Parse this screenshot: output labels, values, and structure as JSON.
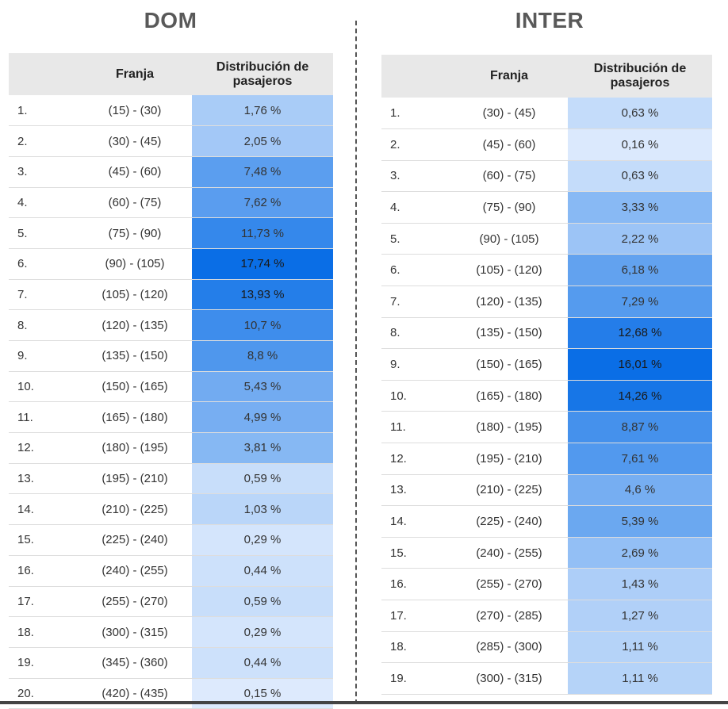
{
  "colors": {
    "scale_low": "#f2f7ff",
    "scale_high": "#0a6ee6"
  },
  "dom": {
    "title": "DOM",
    "headers": {
      "index": "",
      "range": "Franja",
      "value": "Distribución de pasajeros"
    },
    "max_share": 17.74,
    "rows": [
      {
        "index": "1.",
        "range": "(15) - (30)",
        "value": "1,76 %",
        "share": 1.76
      },
      {
        "index": "2.",
        "range": "(30) - (45)",
        "value": "2,05 %",
        "share": 2.05
      },
      {
        "index": "3.",
        "range": "(45) - (60)",
        "value": "7,48 %",
        "share": 7.48
      },
      {
        "index": "4.",
        "range": "(60) - (75)",
        "value": "7,62 %",
        "share": 7.62
      },
      {
        "index": "5.",
        "range": "(75) - (90)",
        "value": "11,73 %",
        "share": 11.73
      },
      {
        "index": "6.",
        "range": "(90) - (105)",
        "value": "17,74 %",
        "share": 17.74
      },
      {
        "index": "7.",
        "range": "(105) - (120)",
        "value": "13,93 %",
        "share": 13.93
      },
      {
        "index": "8.",
        "range": "(120) - (135)",
        "value": "10,7 %",
        "share": 10.7
      },
      {
        "index": "9.",
        "range": "(135) - (150)",
        "value": "8,8 %",
        "share": 8.8
      },
      {
        "index": "10.",
        "range": "(150) - (165)",
        "value": "5,43 %",
        "share": 5.43
      },
      {
        "index": "11.",
        "range": "(165) - (180)",
        "value": "4,99 %",
        "share": 4.99
      },
      {
        "index": "12.",
        "range": "(180) - (195)",
        "value": "3,81 %",
        "share": 3.81
      },
      {
        "index": "13.",
        "range": "(195) - (210)",
        "value": "0,59 %",
        "share": 0.59
      },
      {
        "index": "14.",
        "range": "(210) - (225)",
        "value": "1,03 %",
        "share": 1.03
      },
      {
        "index": "15.",
        "range": "(225) - (240)",
        "value": "0,29 %",
        "share": 0.29
      },
      {
        "index": "16.",
        "range": "(240) - (255)",
        "value": "0,44 %",
        "share": 0.44
      },
      {
        "index": "17.",
        "range": "(255) - (270)",
        "value": "0,59 %",
        "share": 0.59
      },
      {
        "index": "18.",
        "range": "(300) - (315)",
        "value": "0,29 %",
        "share": 0.29
      },
      {
        "index": "19.",
        "range": "(345) - (360)",
        "value": "0,44 %",
        "share": 0.44
      },
      {
        "index": "20.",
        "range": "(420) - (435)",
        "value": "0,15 %",
        "share": 0.15
      }
    ]
  },
  "inter": {
    "title": "INTER",
    "headers": {
      "index": "",
      "range": "Franja",
      "value": "Distribución de pasajeros"
    },
    "max_share": 16.01,
    "rows": [
      {
        "index": "1.",
        "range": "(30) - (45)",
        "value": "0,63 %",
        "share": 0.63
      },
      {
        "index": "2.",
        "range": "(45) - (60)",
        "value": "0,16 %",
        "share": 0.16
      },
      {
        "index": "3.",
        "range": "(60) - (75)",
        "value": "0,63 %",
        "share": 0.63
      },
      {
        "index": "4.",
        "range": "(75) - (90)",
        "value": "3,33 %",
        "share": 3.33
      },
      {
        "index": "5.",
        "range": "(90) - (105)",
        "value": "2,22 %",
        "share": 2.22
      },
      {
        "index": "6.",
        "range": "(105) - (120)",
        "value": "6,18 %",
        "share": 6.18
      },
      {
        "index": "7.",
        "range": "(120) - (135)",
        "value": "7,29 %",
        "share": 7.29
      },
      {
        "index": "8.",
        "range": "(135) - (150)",
        "value": "12,68 %",
        "share": 12.68
      },
      {
        "index": "9.",
        "range": "(150) - (165)",
        "value": "16,01 %",
        "share": 16.01
      },
      {
        "index": "10.",
        "range": "(165) - (180)",
        "value": "14,26 %",
        "share": 14.26
      },
      {
        "index": "11.",
        "range": "(180) - (195)",
        "value": "8,87 %",
        "share": 8.87
      },
      {
        "index": "12.",
        "range": "(195) - (210)",
        "value": "7,61 %",
        "share": 7.61
      },
      {
        "index": "13.",
        "range": "(210) - (225)",
        "value": "4,6 %",
        "share": 4.6
      },
      {
        "index": "14.",
        "range": "(225) - (240)",
        "value": "5,39 %",
        "share": 5.39
      },
      {
        "index": "15.",
        "range": "(240) - (255)",
        "value": "2,69 %",
        "share": 2.69
      },
      {
        "index": "16.",
        "range": "(255) - (270)",
        "value": "1,43 %",
        "share": 1.43
      },
      {
        "index": "17.",
        "range": "(270) - (285)",
        "value": "1,27 %",
        "share": 1.27
      },
      {
        "index": "18.",
        "range": "(285) - (300)",
        "value": "1,11 %",
        "share": 1.11
      },
      {
        "index": "19.",
        "range": "(300) - (315)",
        "value": "1,11 %",
        "share": 1.11
      }
    ]
  }
}
